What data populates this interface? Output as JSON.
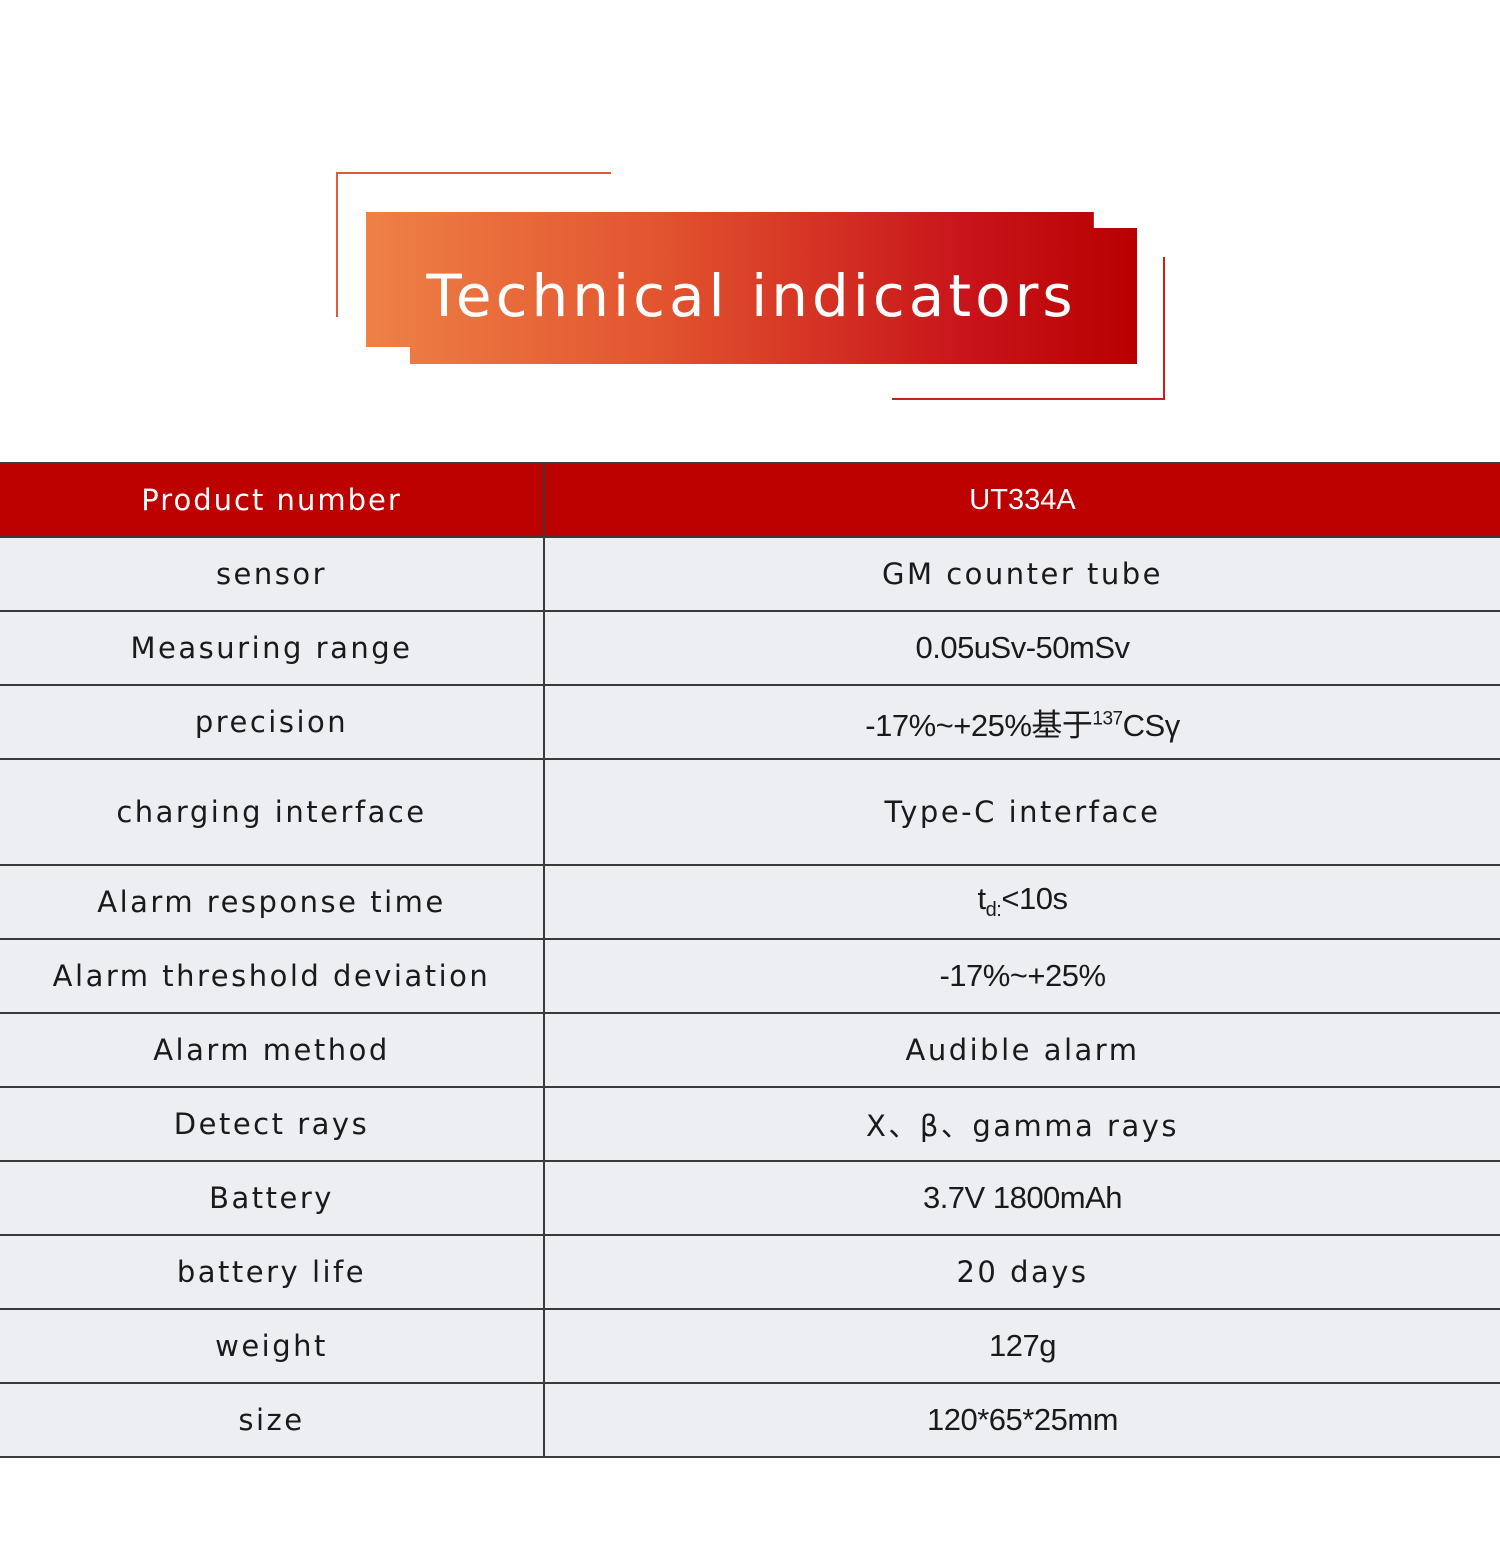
{
  "banner": {
    "title": "Technical indicators"
  },
  "table": {
    "header": {
      "label": "Product number",
      "value": "UT334A"
    },
    "rows": [
      {
        "label": "sensor",
        "value": "GM counter tube"
      },
      {
        "label": "Measuring range",
        "value": "0.05uSv-50mSv"
      },
      {
        "label": "precision",
        "value_pre": "-17%~+25%基于",
        "value_sup": "137",
        "value_post": "CSγ"
      },
      {
        "label": "charging interface",
        "value": "Type-C interface"
      },
      {
        "label": "Alarm response time",
        "value_pre": "t",
        "value_sub": "d:",
        "value_post": "<10s"
      },
      {
        "label": "Alarm threshold deviation",
        "value": "-17%~+25%"
      },
      {
        "label": "Alarm method",
        "value": "Audible alarm"
      },
      {
        "label": "Detect rays",
        "value": "X、β、gamma rays"
      },
      {
        "label": "Battery",
        "value": "3.7V 1800mAh"
      },
      {
        "label": "battery life",
        "value": "20 days"
      },
      {
        "label": "weight",
        "value": "127g"
      },
      {
        "label": "size",
        "value": "120*65*25mm"
      }
    ]
  },
  "colors": {
    "header_red": "#bd0000",
    "row_bg": "#edeef2",
    "banner_orange": "#ee8146",
    "banner_red": "#b80000"
  }
}
